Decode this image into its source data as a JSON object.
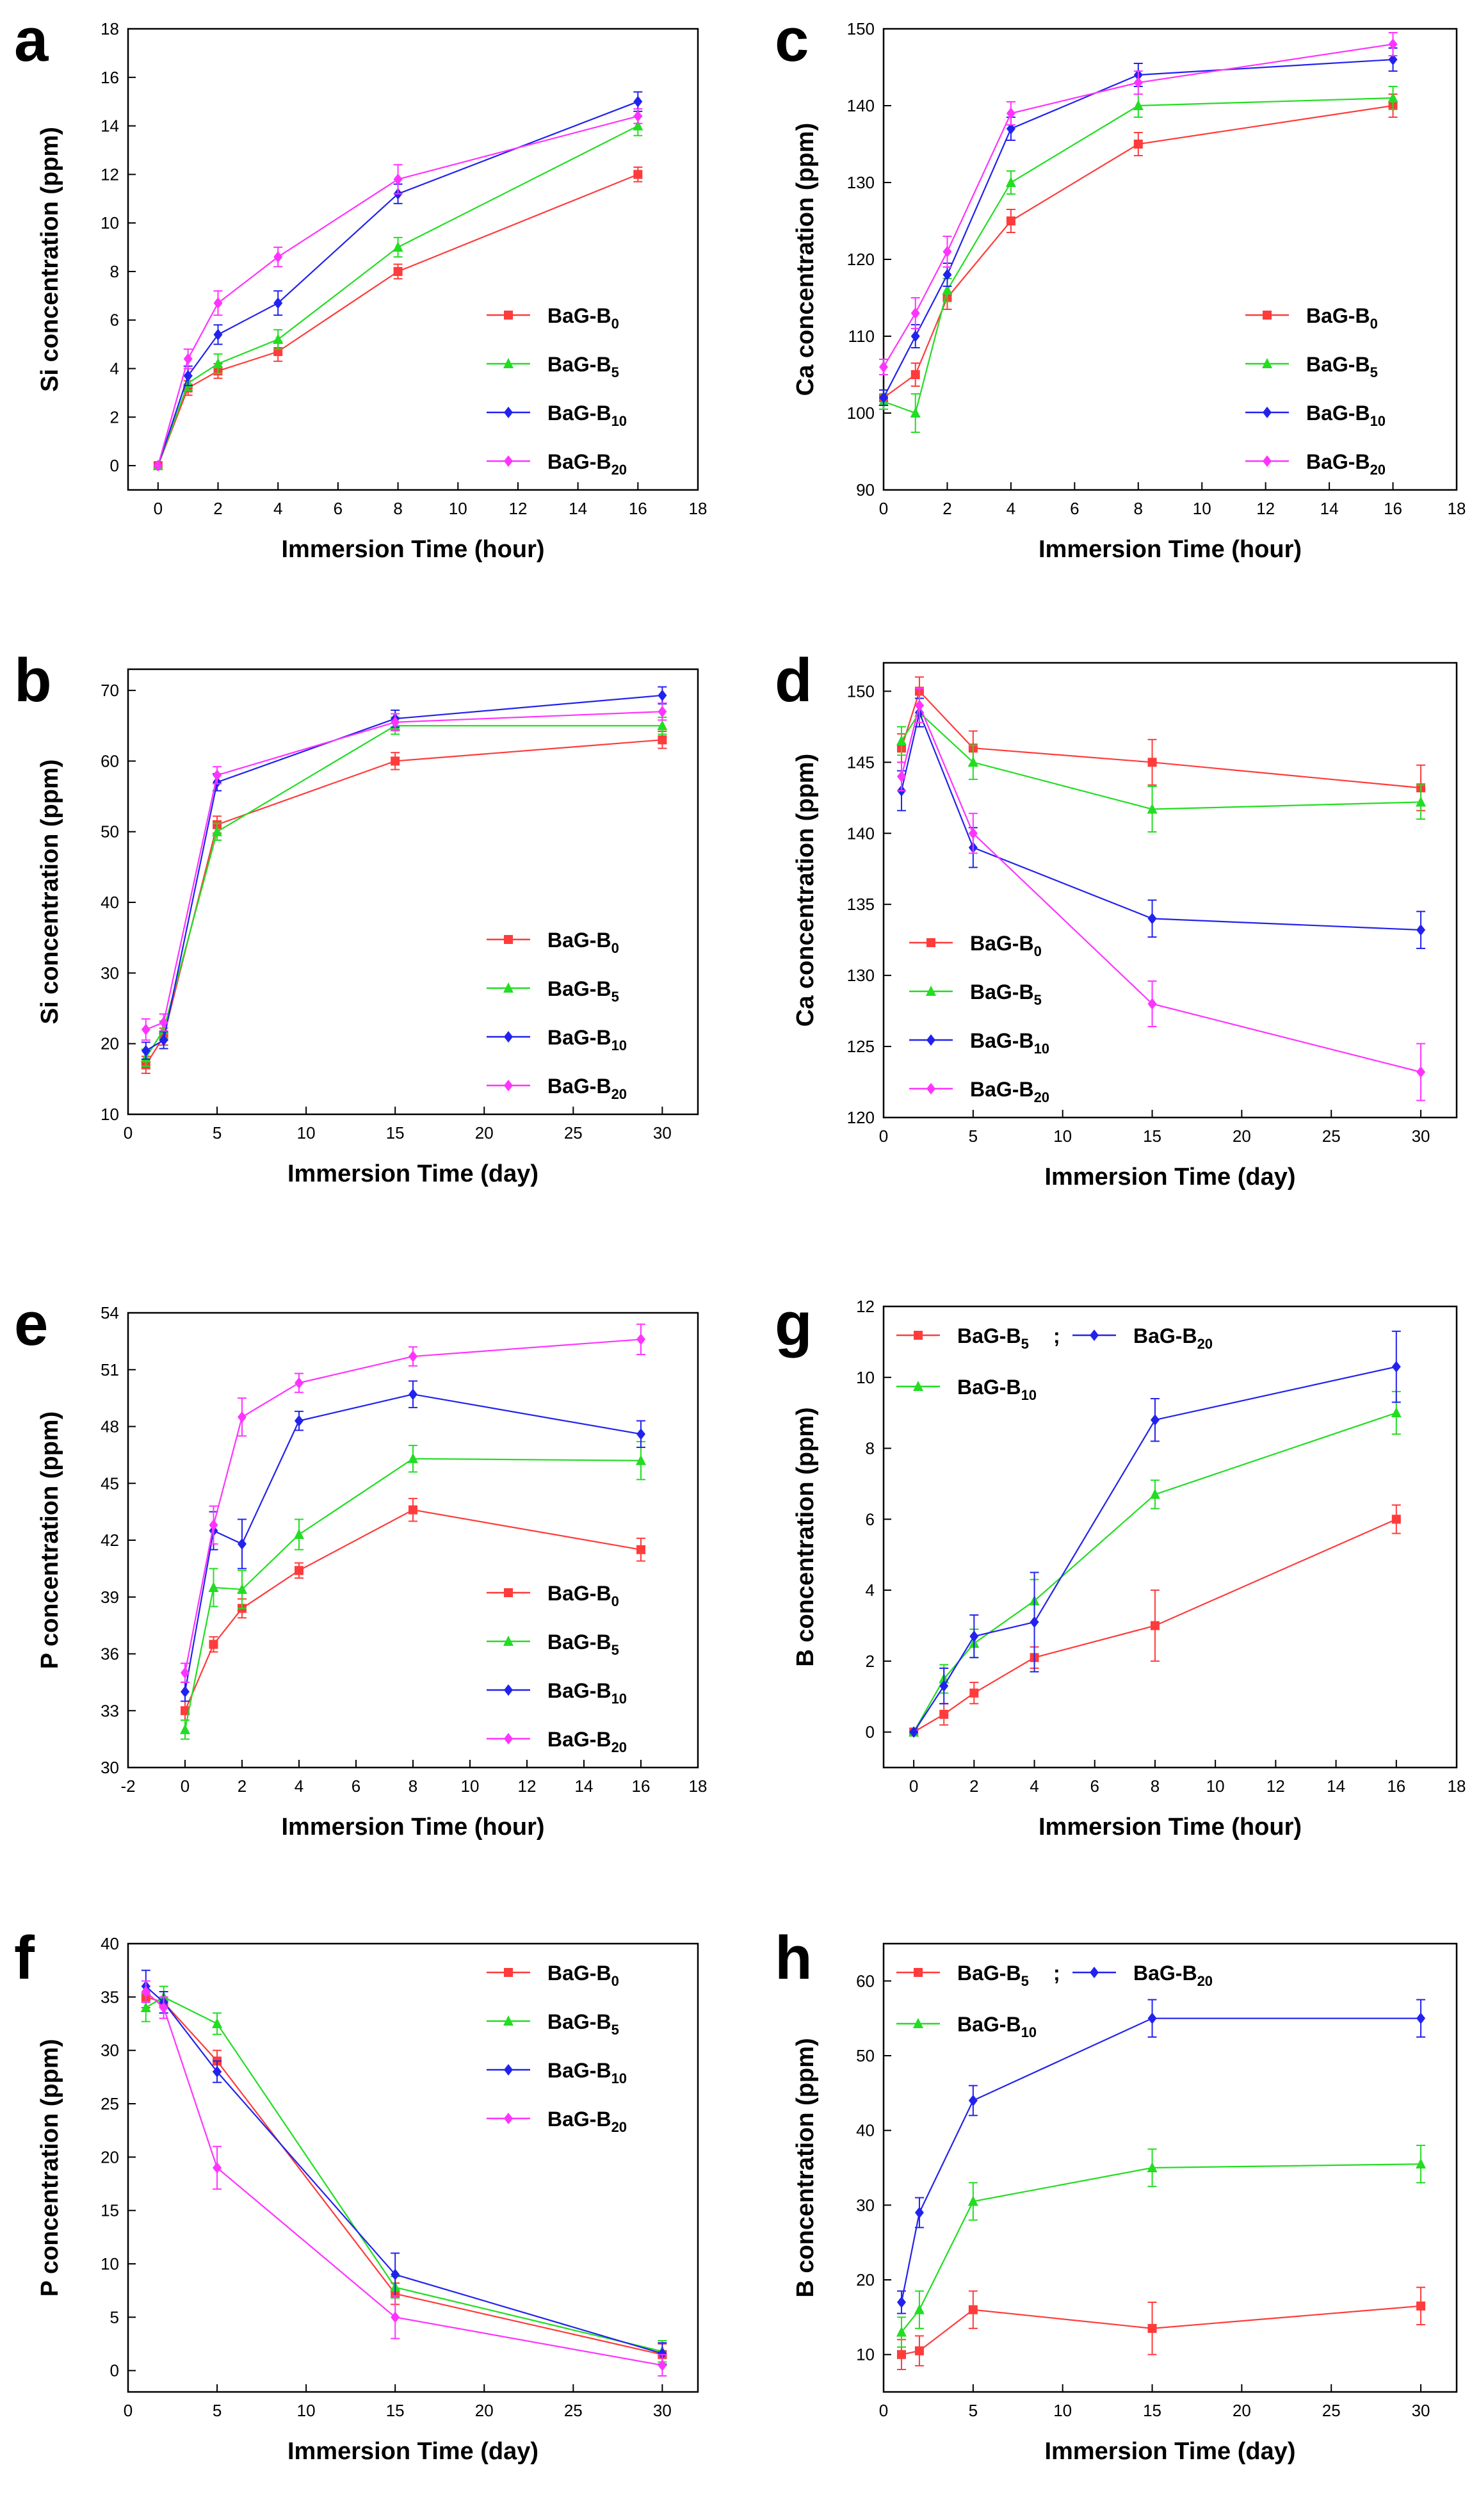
{
  "chart_data": [
    {
      "panel": "a",
      "type": "line",
      "xlabel": "Immersion Time (hour)",
      "ylabel": "Si concentration (ppm)",
      "xlim": [
        -1,
        18
      ],
      "ylim": [
        -1,
        18
      ],
      "xticks": [
        0,
        2,
        4,
        6,
        8,
        10,
        12,
        14,
        16,
        18
      ],
      "yticks": [
        0,
        2,
        4,
        6,
        8,
        10,
        12,
        14,
        16,
        18
      ],
      "legend": "bottom-right",
      "series": [
        {
          "name": "BaG-B",
          "sub": "0",
          "color": "#ff3b3b",
          "marker": "square",
          "x": [
            0,
            1,
            2,
            4,
            8,
            16
          ],
          "y": [
            0,
            3.2,
            3.9,
            4.7,
            8.0,
            12.0
          ],
          "err": [
            0,
            0.3,
            0.3,
            0.4,
            0.3,
            0.3
          ]
        },
        {
          "name": "BaG-B",
          "sub": "5",
          "color": "#22dd22",
          "marker": "triangle",
          "x": [
            0,
            1,
            2,
            4,
            8,
            16
          ],
          "y": [
            0,
            3.4,
            4.2,
            5.2,
            9.0,
            14.0
          ],
          "err": [
            0,
            0.3,
            0.4,
            0.4,
            0.4,
            0.4
          ]
        },
        {
          "name": "BaG-B",
          "sub": "10",
          "color": "#2222ee",
          "marker": "diamond",
          "x": [
            0,
            1,
            2,
            4,
            8,
            16
          ],
          "y": [
            0,
            3.7,
            5.4,
            6.7,
            11.2,
            15.0
          ],
          "err": [
            0,
            0.4,
            0.4,
            0.5,
            0.4,
            0.4
          ]
        },
        {
          "name": "BaG-B",
          "sub": "20",
          "color": "#ff33ff",
          "marker": "diamond",
          "x": [
            0,
            1,
            2,
            4,
            8,
            16
          ],
          "y": [
            0,
            4.4,
            6.7,
            8.6,
            11.8,
            14.4
          ],
          "err": [
            0,
            0.4,
            0.5,
            0.4,
            0.6,
            0.3
          ]
        }
      ]
    },
    {
      "panel": "b",
      "type": "line",
      "xlabel": "Immersion Time (day)",
      "ylabel": "Si concentration (ppm)",
      "xlim": [
        0,
        32
      ],
      "ylim": [
        10,
        73
      ],
      "xticks": [
        0,
        5,
        10,
        15,
        20,
        25,
        30
      ],
      "yticks": [
        10,
        20,
        30,
        40,
        50,
        60,
        70
      ],
      "legend": "bottom-right",
      "series": [
        {
          "name": "BaG-B",
          "sub": "0",
          "color": "#ff3b3b",
          "marker": "square",
          "x": [
            1,
            2,
            5,
            15,
            30
          ],
          "y": [
            17,
            21,
            51,
            60,
            63
          ],
          "err": [
            1.2,
            1.2,
            1.2,
            1.2,
            1.2
          ]
        },
        {
          "name": "BaG-B",
          "sub": "5",
          "color": "#22dd22",
          "marker": "triangle",
          "x": [
            1,
            2,
            5,
            15,
            30
          ],
          "y": [
            18,
            22,
            50,
            65,
            65
          ],
          "err": [
            1.2,
            1.2,
            1.2,
            1.2,
            1.2
          ]
        },
        {
          "name": "BaG-B",
          "sub": "10",
          "color": "#2222ee",
          "marker": "diamond",
          "x": [
            1,
            2,
            5,
            15,
            30
          ],
          "y": [
            19,
            20.5,
            57,
            66,
            69.3
          ],
          "err": [
            1.2,
            1.2,
            1.2,
            1.2,
            1.2
          ]
        },
        {
          "name": "BaG-B",
          "sub": "20",
          "color": "#ff33ff",
          "marker": "diamond",
          "x": [
            1,
            2,
            5,
            15,
            30
          ],
          "y": [
            22,
            23,
            58,
            65.5,
            67
          ],
          "err": [
            1.5,
            1.2,
            1.2,
            1.2,
            1.2
          ]
        }
      ]
    },
    {
      "panel": "c",
      "type": "line",
      "xlabel": "Immersion Time (hour)",
      "ylabel": "Ca concentration (ppm)",
      "xlim": [
        0,
        18
      ],
      "ylim": [
        90,
        150
      ],
      "xticks": [
        0,
        2,
        4,
        6,
        8,
        10,
        12,
        14,
        16,
        18
      ],
      "yticks": [
        90,
        100,
        110,
        120,
        130,
        140,
        150
      ],
      "legend": "bottom-right",
      "series": [
        {
          "name": "BaG-B",
          "sub": "0",
          "color": "#ff3b3b",
          "marker": "square",
          "x": [
            0,
            1,
            2,
            4,
            8,
            16
          ],
          "y": [
            102,
            105,
            115,
            125,
            135,
            140
          ],
          "err": [
            1,
            1.5,
            1.5,
            1.5,
            1.5,
            1.5
          ]
        },
        {
          "name": "BaG-B",
          "sub": "5",
          "color": "#22dd22",
          "marker": "triangle",
          "x": [
            0,
            1,
            2,
            4,
            8,
            16
          ],
          "y": [
            101.5,
            100,
            116,
            130,
            140,
            141
          ],
          "err": [
            1,
            2.5,
            1.5,
            1.5,
            1.5,
            1.5
          ]
        },
        {
          "name": "BaG-B",
          "sub": "10",
          "color": "#2222ee",
          "marker": "diamond",
          "x": [
            0,
            1,
            2,
            4,
            8,
            16
          ],
          "y": [
            102,
            110,
            118,
            137,
            144,
            146
          ],
          "err": [
            1,
            1.5,
            1.5,
            1.5,
            1.5,
            1.5
          ]
        },
        {
          "name": "BaG-B",
          "sub": "20",
          "color": "#ff33ff",
          "marker": "diamond",
          "x": [
            0,
            1,
            2,
            4,
            8,
            16
          ],
          "y": [
            106,
            113,
            121,
            139,
            143,
            148
          ],
          "err": [
            1,
            2,
            2,
            1.5,
            1.5,
            1.5
          ]
        }
      ]
    },
    {
      "panel": "d",
      "type": "line",
      "xlabel": "Immersion Time (day)",
      "ylabel": "Ca concentration (ppm)",
      "xlim": [
        0,
        32
      ],
      "ylim": [
        120,
        152
      ],
      "xticks": [
        0,
        5,
        10,
        15,
        20,
        25,
        30
      ],
      "yticks": [
        120,
        125,
        130,
        135,
        140,
        145,
        150
      ],
      "legend": "bottom-left",
      "series": [
        {
          "name": "BaG-B",
          "sub": "0",
          "color": "#ff3b3b",
          "marker": "square",
          "x": [
            1,
            2,
            5,
            15,
            30
          ],
          "y": [
            146,
            150,
            146,
            145,
            143.2
          ],
          "err": [
            1,
            1,
            1.2,
            1.6,
            1.6
          ]
        },
        {
          "name": "BaG-B",
          "sub": "5",
          "color": "#22dd22",
          "marker": "triangle",
          "x": [
            1,
            2,
            5,
            15,
            30
          ],
          "y": [
            146.5,
            148.5,
            145,
            141.7,
            142.2
          ],
          "err": [
            1,
            1,
            1.2,
            1.6,
            1.2
          ]
        },
        {
          "name": "BaG-B",
          "sub": "10",
          "color": "#2222ee",
          "marker": "diamond",
          "x": [
            1,
            2,
            5,
            15,
            30
          ],
          "y": [
            143,
            148.5,
            139,
            134,
            133.2
          ],
          "err": [
            1.4,
            1,
            1.4,
            1.3,
            1.3
          ]
        },
        {
          "name": "BaG-B",
          "sub": "20",
          "color": "#ff33ff",
          "marker": "diamond",
          "x": [
            1,
            2,
            5,
            15,
            30
          ],
          "y": [
            144,
            149,
            140,
            128,
            123.2
          ],
          "err": [
            1,
            1.2,
            1.4,
            1.6,
            2
          ]
        }
      ]
    },
    {
      "panel": "e",
      "type": "line",
      "xlabel": "Immersion Time (hour)",
      "ylabel": "P concentration (ppm)",
      "xlim": [
        -2,
        18
      ],
      "ylim": [
        30,
        54
      ],
      "xticks": [
        -2,
        0,
        2,
        4,
        6,
        8,
        10,
        12,
        14,
        16,
        18
      ],
      "yticks": [
        30,
        33,
        36,
        39,
        42,
        45,
        48,
        51,
        54
      ],
      "legend": "bottom-right",
      "series": [
        {
          "name": "BaG-B",
          "sub": "0",
          "color": "#ff3b3b",
          "marker": "square",
          "x": [
            0,
            1,
            2,
            4,
            8,
            16
          ],
          "y": [
            33,
            36.5,
            38.4,
            40.4,
            43.6,
            41.5
          ],
          "err": [
            0.5,
            0.4,
            0.5,
            0.4,
            0.6,
            0.6
          ]
        },
        {
          "name": "BaG-B",
          "sub": "5",
          "color": "#22dd22",
          "marker": "triangle",
          "x": [
            0,
            1,
            2,
            4,
            8,
            16
          ],
          "y": [
            32,
            39.5,
            39.4,
            42.3,
            46.3,
            46.2
          ],
          "err": [
            0.5,
            1,
            1,
            0.8,
            0.7,
            1
          ]
        },
        {
          "name": "BaG-B",
          "sub": "10",
          "color": "#2222ee",
          "marker": "diamond",
          "x": [
            0,
            1,
            2,
            4,
            8,
            16
          ],
          "y": [
            34,
            42.5,
            41.8,
            48.3,
            49.7,
            47.6
          ],
          "err": [
            0.5,
            1,
            1.3,
            0.5,
            0.7,
            0.7
          ]
        },
        {
          "name": "BaG-B",
          "sub": "20",
          "color": "#ff33ff",
          "marker": "diamond",
          "x": [
            0,
            1,
            2,
            4,
            8,
            16
          ],
          "y": [
            35,
            42.8,
            48.5,
            50.3,
            51.7,
            52.6
          ],
          "err": [
            0.5,
            1,
            1,
            0.5,
            0.5,
            0.8
          ]
        }
      ]
    },
    {
      "panel": "f",
      "type": "line",
      "xlabel": "Immersion Time (day)",
      "ylabel": "P concentration (ppm)",
      "xlim": [
        0,
        32
      ],
      "ylim": [
        -2,
        40
      ],
      "xticks": [
        0,
        5,
        10,
        15,
        20,
        25,
        30
      ],
      "yticks": [
        0,
        5,
        10,
        15,
        20,
        25,
        30,
        35,
        40
      ],
      "legend": "top-right",
      "series": [
        {
          "name": "BaG-B",
          "sub": "0",
          "color": "#ff3b3b",
          "marker": "square",
          "x": [
            1,
            2,
            5,
            15,
            30
          ],
          "y": [
            35,
            34.5,
            29,
            7.2,
            1.5
          ],
          "err": [
            1,
            1,
            1,
            1,
            1
          ]
        },
        {
          "name": "BaG-B",
          "sub": "5",
          "color": "#22dd22",
          "marker": "triangle",
          "x": [
            1,
            2,
            5,
            15,
            30
          ],
          "y": [
            34,
            35,
            32.5,
            7.8,
            1.8
          ],
          "err": [
            1.3,
            1,
            1,
            1,
            1
          ]
        },
        {
          "name": "BaG-B",
          "sub": "10",
          "color": "#2222ee",
          "marker": "diamond",
          "x": [
            1,
            2,
            5,
            15,
            30
          ],
          "y": [
            36,
            34.5,
            28,
            9,
            1.6
          ],
          "err": [
            1.5,
            1,
            1,
            2,
            1
          ]
        },
        {
          "name": "BaG-B",
          "sub": "20",
          "color": "#ff33ff",
          "marker": "diamond",
          "x": [
            1,
            2,
            5,
            15,
            30
          ],
          "y": [
            35.5,
            34,
            19,
            5,
            0.5
          ],
          "err": [
            1,
            1,
            2,
            2,
            1
          ]
        }
      ]
    },
    {
      "panel": "g",
      "type": "line",
      "xlabel": "Immersion Time (hour)",
      "ylabel": "B concentration (ppm)",
      "xlim": [
        -1,
        18
      ],
      "ylim": [
        -1,
        12
      ],
      "xticks": [
        0,
        2,
        4,
        6,
        8,
        10,
        12,
        14,
        16,
        18
      ],
      "yticks": [
        0,
        2,
        4,
        6,
        8,
        10,
        12
      ],
      "legend": "top-left-compact",
      "series": [
        {
          "name": "BaG-B",
          "sub": "5",
          "color": "#ff3b3b",
          "marker": "square",
          "x": [
            0,
            1,
            2,
            4,
            8,
            16
          ],
          "y": [
            0,
            0.5,
            1.1,
            2.1,
            3.0,
            6.0
          ],
          "err": [
            0,
            0.3,
            0.3,
            0.3,
            1.0,
            0.4
          ]
        },
        {
          "name": "BaG-B",
          "sub": "10",
          "color": "#22dd22",
          "marker": "triangle",
          "x": [
            0,
            1,
            2,
            4,
            8,
            16
          ],
          "y": [
            0,
            1.5,
            2.5,
            3.7,
            6.7,
            9.0
          ],
          "err": [
            0,
            0.4,
            0.4,
            0.6,
            0.4,
            0.6
          ]
        },
        {
          "name": "BaG-B",
          "sub": "20",
          "color": "#2222ee",
          "marker": "diamond",
          "x": [
            0,
            1,
            2,
            4,
            8,
            16
          ],
          "y": [
            0,
            1.3,
            2.7,
            3.1,
            8.8,
            10.3
          ],
          "err": [
            0,
            0.5,
            0.6,
            1.4,
            0.6,
            1.0
          ]
        }
      ]
    },
    {
      "panel": "h",
      "type": "line",
      "xlabel": "Immersion Time (day)",
      "ylabel": "B concentration (ppm)",
      "xlim": [
        0,
        32
      ],
      "ylim": [
        5,
        65
      ],
      "xticks": [
        0,
        5,
        10,
        15,
        20,
        25,
        30
      ],
      "yticks": [
        10,
        20,
        30,
        40,
        50,
        60
      ],
      "legend": "top-left-compact",
      "series": [
        {
          "name": "BaG-B",
          "sub": "5",
          "color": "#ff3b3b",
          "marker": "square",
          "x": [
            1,
            2,
            5,
            15,
            30
          ],
          "y": [
            10,
            10.5,
            16,
            13.5,
            16.5
          ],
          "err": [
            2,
            2,
            2.5,
            3.5,
            2.5
          ]
        },
        {
          "name": "BaG-B",
          "sub": "10",
          "color": "#22dd22",
          "marker": "triangle",
          "x": [
            1,
            2,
            5,
            15,
            30
          ],
          "y": [
            13,
            16,
            30.5,
            35,
            35.5
          ],
          "err": [
            2,
            2.5,
            2.5,
            2.5,
            2.5
          ]
        },
        {
          "name": "BaG-B",
          "sub": "20",
          "color": "#2222ee",
          "marker": "diamond",
          "x": [
            1,
            2,
            5,
            15,
            30
          ],
          "y": [
            17,
            29,
            44,
            55,
            55
          ],
          "err": [
            1.5,
            2,
            2,
            2.5,
            2.5
          ]
        }
      ]
    }
  ],
  "legend_semicolon": ";"
}
